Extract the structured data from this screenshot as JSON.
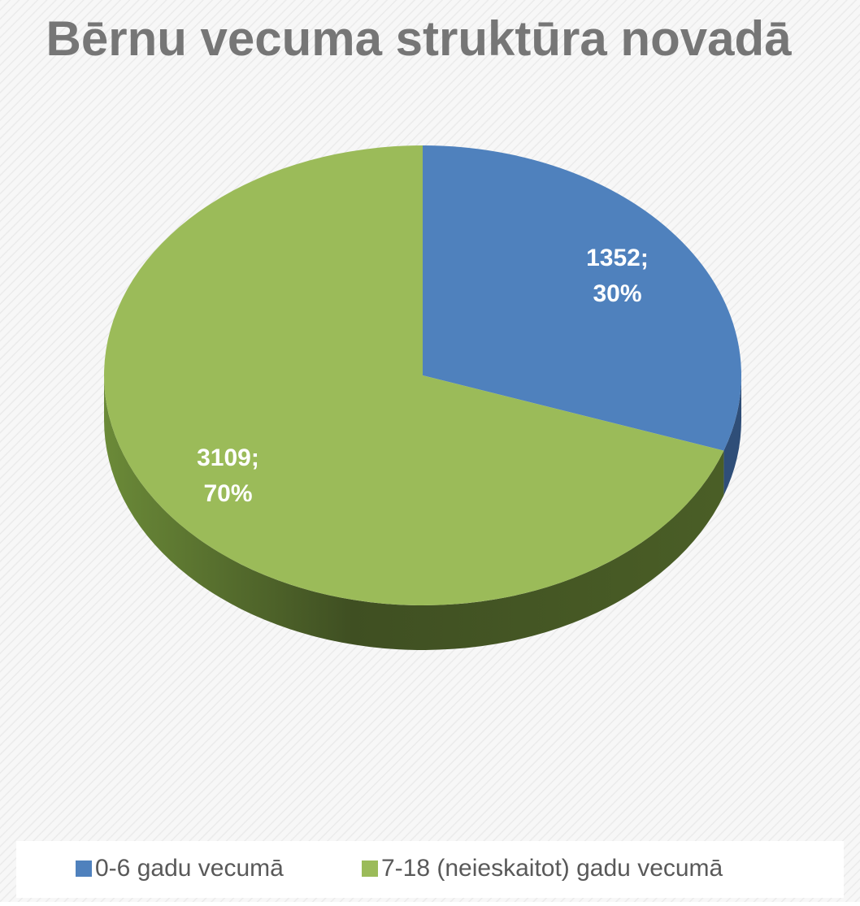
{
  "chart_data": {
    "type": "pie",
    "title": "Bērnu vecuma struktūra novadā",
    "categories": [
      "0-6 gadu vecumā",
      "7-18 (neieskaitot) gadu vecumā"
    ],
    "values": [
      1352,
      3109
    ],
    "value_labels": [
      [
        "1352;",
        "30%"
      ],
      [
        "3109;",
        "70%"
      ]
    ],
    "colors": [
      "#4f81bd",
      "#9bbb59"
    ],
    "legend": "bottom"
  }
}
